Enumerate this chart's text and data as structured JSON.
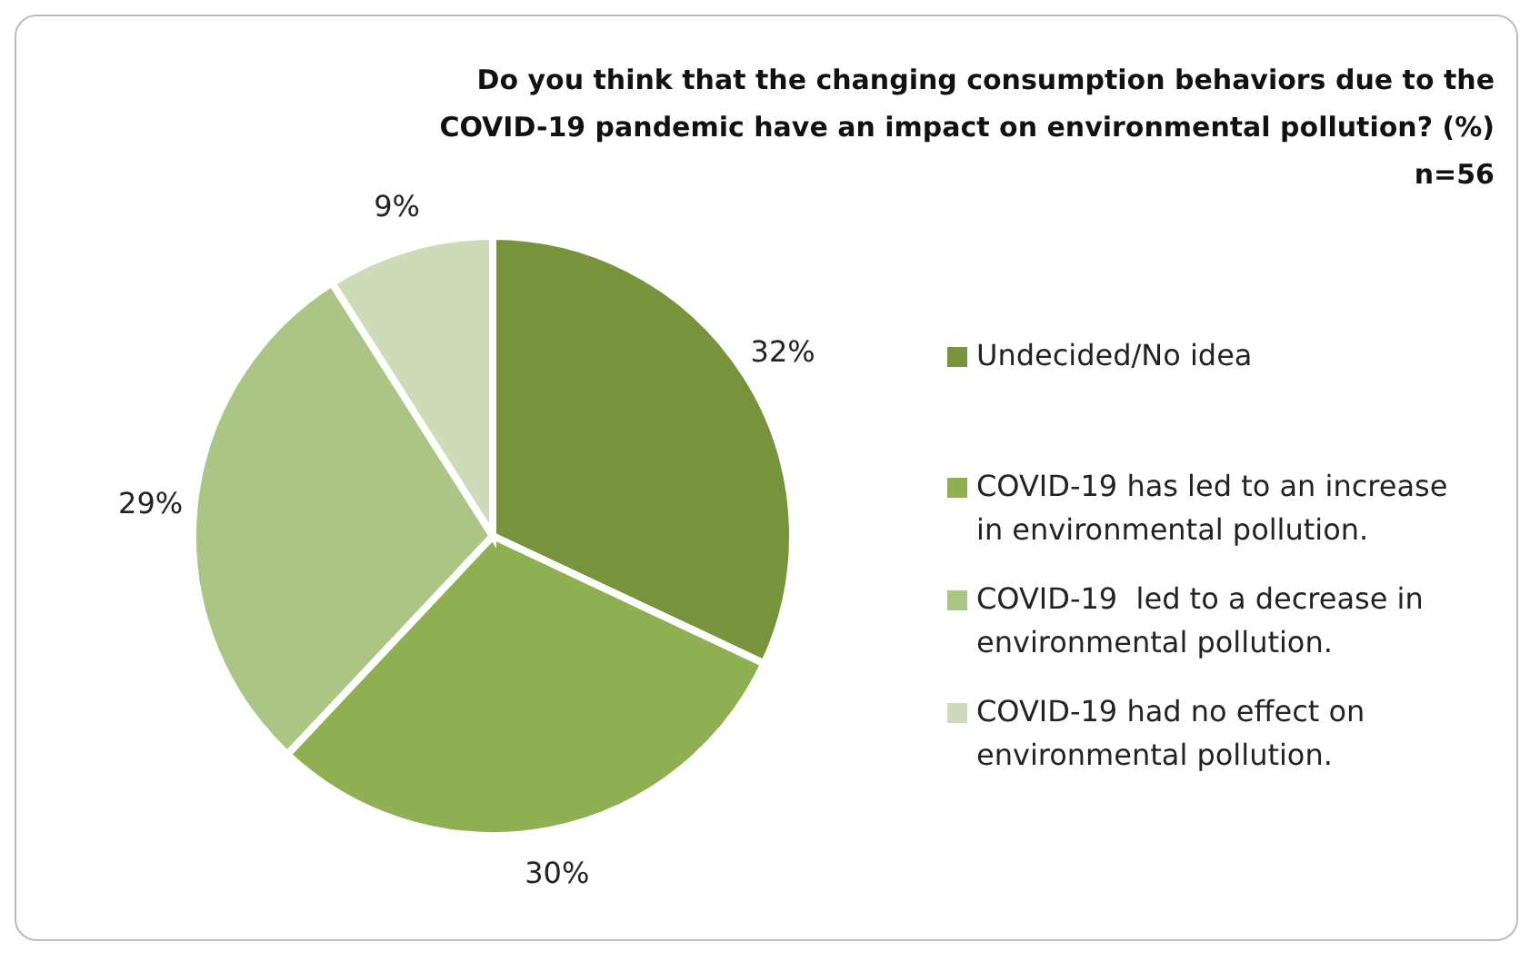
{
  "chart_data": {
    "type": "pie",
    "title": "Do you think that the changing consumption behaviors due to the COVID-19 pandemic have an impact on environmental pollution? (%) n=56",
    "categories": [
      "Undecided/No idea",
      "COVID-19 has led to an increase in environmental pollution.",
      "COVID-19  led to a decrease in environmental pollution.",
      "COVID-19 had no effect on environmental pollution."
    ],
    "values": [
      32,
      30,
      29,
      9
    ],
    "colors": [
      "#77933c",
      "#8fb052",
      "#abc585",
      "#cddbb9"
    ],
    "value_labels": [
      "32%",
      "30%",
      "29%",
      "9%"
    ],
    "legend": "right"
  }
}
